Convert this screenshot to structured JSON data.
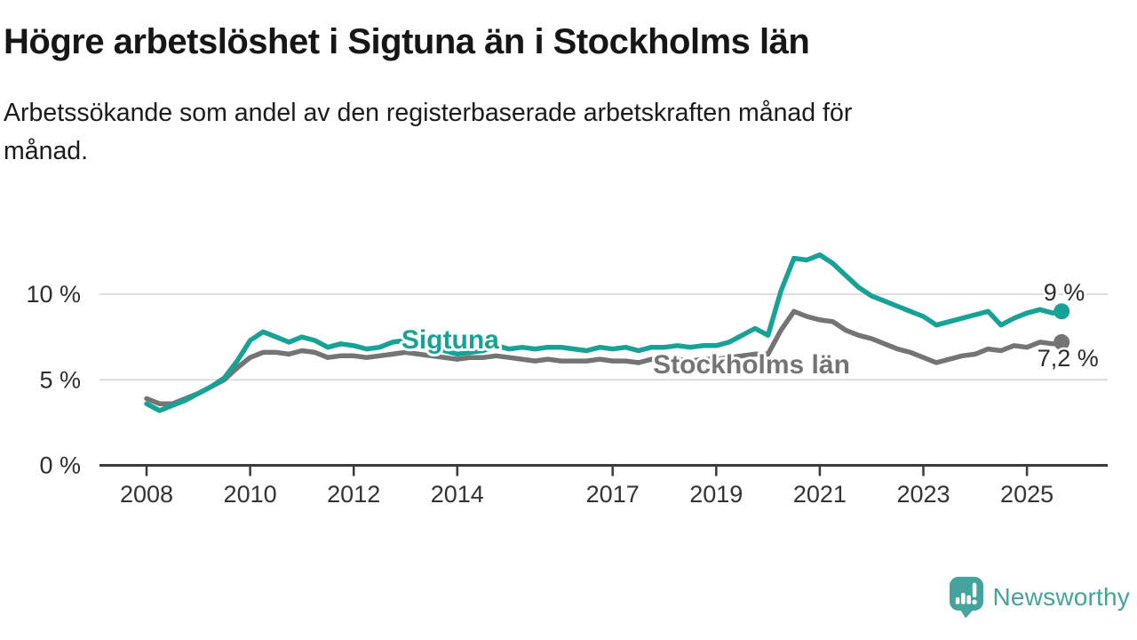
{
  "header": {
    "title": "Högre arbetslöshet i Sigtuna än i Stockholms län",
    "subtitle_line1": "Arbetssökande som andel av den registerbaserade arbetskraften månad för",
    "subtitle_line2": "månad."
  },
  "chart_data": {
    "type": "line",
    "title": "Högre arbetslöshet i Sigtuna än i Stockholms län",
    "subtitle": "Arbetssökande som andel av den registerbaserade arbetskraften månad för månad.",
    "xlabel": "",
    "ylabel": "",
    "xlim": [
      2007.9,
      2025.95
    ],
    "ylim": [
      0,
      13.8
    ],
    "grid": "horizontal",
    "legend_position": "inline-labels",
    "x_ticks": [
      2008,
      2010,
      2012,
      2014,
      2017,
      2019,
      2021,
      2023,
      2025
    ],
    "y_ticks": [
      {
        "value": 0,
        "label": "0 %"
      },
      {
        "value": 5,
        "label": "5 %"
      },
      {
        "value": 10,
        "label": "10 %"
      }
    ],
    "x": [
      2008.0,
      2008.25,
      2008.5,
      2008.75,
      2009.0,
      2009.25,
      2009.5,
      2009.75,
      2010.0,
      2010.25,
      2010.5,
      2010.75,
      2011.0,
      2011.25,
      2011.5,
      2011.75,
      2012.0,
      2012.25,
      2012.5,
      2012.75,
      2013.0,
      2013.25,
      2013.5,
      2013.75,
      2014.0,
      2014.25,
      2014.5,
      2014.75,
      2015.0,
      2015.25,
      2015.5,
      2015.75,
      2016.0,
      2016.25,
      2016.5,
      2016.75,
      2017.0,
      2017.25,
      2017.5,
      2017.75,
      2018.0,
      2018.25,
      2018.5,
      2018.75,
      2019.0,
      2019.25,
      2019.5,
      2019.75,
      2020.0,
      2020.25,
      2020.5,
      2020.75,
      2021.0,
      2021.25,
      2021.5,
      2021.75,
      2022.0,
      2022.25,
      2022.5,
      2022.75,
      2023.0,
      2023.25,
      2023.5,
      2023.75,
      2024.0,
      2024.25,
      2024.5,
      2024.75,
      2025.0,
      2025.25,
      2025.5,
      2025.67
    ],
    "series": [
      {
        "name": "Stockholms län",
        "color": "#747474",
        "end_label": "7,2 %",
        "end_value": 7.2,
        "values": [
          3.9,
          3.6,
          3.6,
          3.9,
          4.2,
          4.6,
          5.0,
          5.7,
          6.3,
          6.6,
          6.6,
          6.5,
          6.7,
          6.6,
          6.3,
          6.4,
          6.4,
          6.3,
          6.4,
          6.5,
          6.6,
          6.5,
          6.4,
          6.3,
          6.2,
          6.3,
          6.3,
          6.4,
          6.3,
          6.2,
          6.1,
          6.2,
          6.1,
          6.1,
          6.1,
          6.2,
          6.1,
          6.1,
          6.0,
          6.2,
          6.1,
          6.2,
          6.1,
          6.2,
          6.2,
          6.3,
          6.4,
          6.5,
          6.5,
          7.9,
          9.0,
          8.7,
          8.5,
          8.4,
          7.9,
          7.6,
          7.4,
          7.1,
          6.8,
          6.6,
          6.3,
          6.0,
          6.2,
          6.4,
          6.5,
          6.8,
          6.7,
          7.0,
          6.9,
          7.2,
          7.1,
          7.2
        ]
      },
      {
        "name": "Sigtuna",
        "color": "#17a298",
        "end_label": "9 %",
        "end_value": 9.0,
        "values": [
          3.6,
          3.2,
          3.5,
          3.8,
          4.2,
          4.6,
          5.1,
          6.1,
          7.3,
          7.8,
          7.5,
          7.2,
          7.5,
          7.3,
          6.9,
          7.1,
          7.0,
          6.8,
          6.9,
          7.2,
          7.3,
          7.1,
          6.9,
          6.7,
          6.5,
          6.6,
          6.7,
          7.0,
          6.8,
          6.9,
          6.8,
          6.9,
          6.9,
          6.8,
          6.7,
          6.9,
          6.8,
          6.9,
          6.7,
          6.9,
          6.9,
          7.0,
          6.9,
          7.0,
          7.0,
          7.2,
          7.6,
          8.0,
          7.6,
          10.2,
          12.1,
          12.0,
          12.3,
          11.8,
          11.1,
          10.4,
          9.9,
          9.6,
          9.3,
          9.0,
          8.7,
          8.2,
          8.4,
          8.6,
          8.8,
          9.0,
          8.2,
          8.6,
          8.9,
          9.1,
          8.9,
          9.0
        ]
      }
    ],
    "annotations": [
      {
        "text": "Sigtuna",
        "x": 2012.92,
        "value": 6.83,
        "color": "#17a298",
        "size": 30,
        "weight": 700,
        "halo": 6
      },
      {
        "text": "Stockholms län",
        "x": 2017.78,
        "value": 5.38,
        "color": "#747474",
        "size": 30,
        "weight": 700,
        "halo": 6
      },
      {
        "text": "9 %",
        "x": 2025.32,
        "value": 9.64,
        "color": "#2b2b2b",
        "size": 27,
        "weight": 500,
        "halo": 5
      },
      {
        "text": "7,2 %",
        "x": 2025.2,
        "value": 5.79,
        "color": "#2b2b2b",
        "size": 27,
        "weight": 500,
        "halo": 5
      }
    ]
  },
  "footer": {
    "brand": "Newsworthy",
    "brand_color": "#44a39d"
  }
}
